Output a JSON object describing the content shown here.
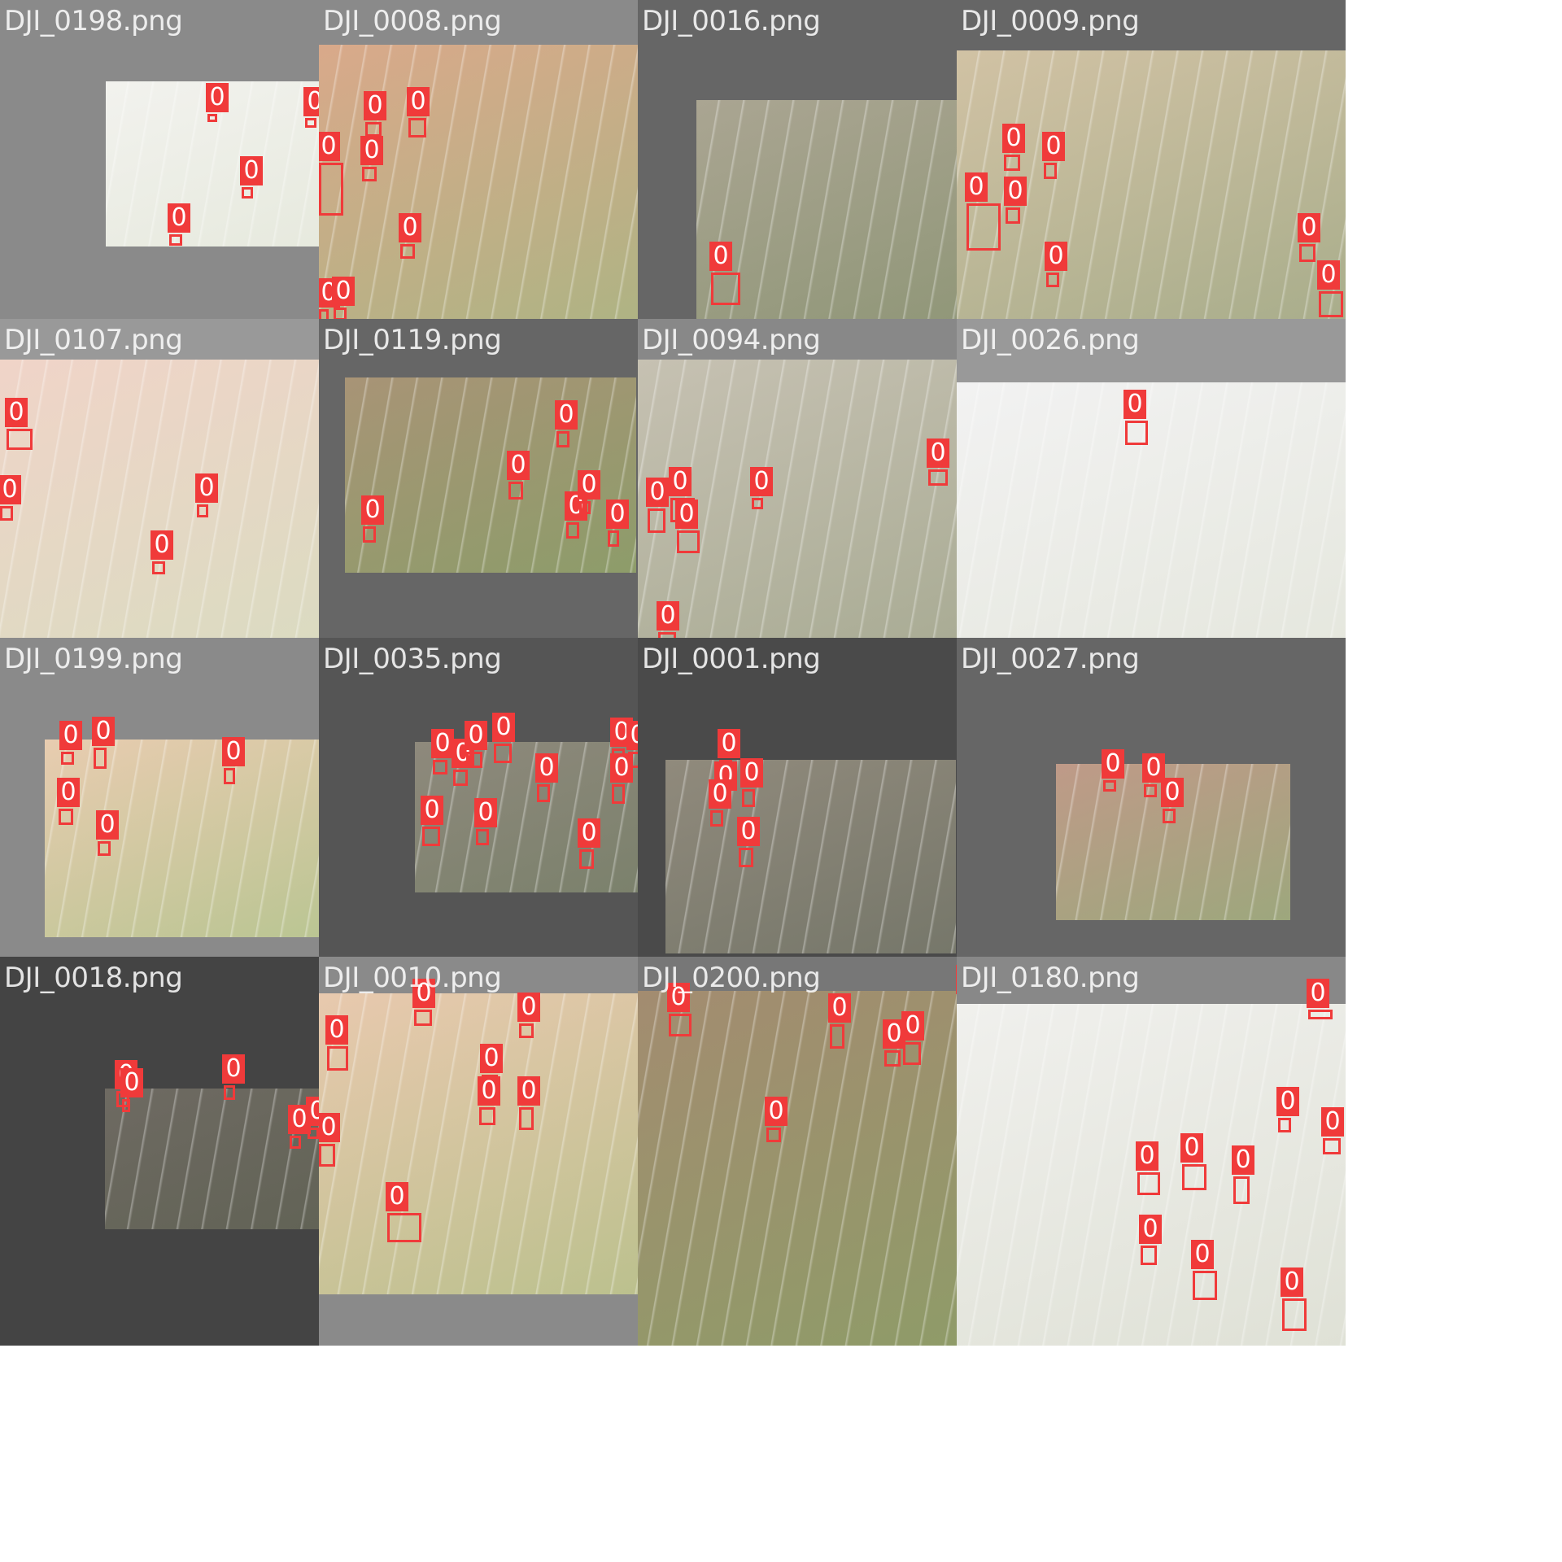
{
  "colors": {
    "box": "#f03a3a",
    "label_text": "#ffffff",
    "filename_text": "#ffffff"
  },
  "tiles": [
    {
      "filename": "DJI_0198.png",
      "detection_label": "0",
      "detection_count": 6
    },
    {
      "filename": "DJI_0008.png",
      "detection_label": "0",
      "detection_count": 10
    },
    {
      "filename": "DJI_0016.png",
      "detection_label": "0",
      "detection_count": 1
    },
    {
      "filename": "DJI_0009.png",
      "detection_label": "0",
      "detection_count": 8
    },
    {
      "filename": "DJI_0107.png",
      "detection_label": "0",
      "detection_count": 6
    },
    {
      "filename": "DJI_0119.png",
      "detection_label": "0",
      "detection_count": 8
    },
    {
      "filename": "DJI_0094.png",
      "detection_label": "0",
      "detection_count": 9
    },
    {
      "filename": "DJI_0026.png",
      "detection_label": "0",
      "detection_count": 1
    },
    {
      "filename": "DJI_0199.png",
      "detection_label": "0",
      "detection_count": 5
    },
    {
      "filename": "DJI_0035.png",
      "detection_label": "0",
      "detection_count": 12
    },
    {
      "filename": "DJI_0001.png",
      "detection_label": "0",
      "detection_count": 5
    },
    {
      "filename": "DJI_0027.png",
      "detection_label": "0",
      "detection_count": 3
    },
    {
      "filename": "DJI_0018.png",
      "detection_label": "0",
      "detection_count": 5
    },
    {
      "filename": "DJI_0010.png",
      "detection_label": "0",
      "detection_count": 9
    },
    {
      "filename": "DJI_0200.png",
      "detection_label": "0",
      "detection_count": 10
    },
    {
      "filename": "DJI_0180.png",
      "detection_label": "0",
      "detection_count": 10
    }
  ]
}
